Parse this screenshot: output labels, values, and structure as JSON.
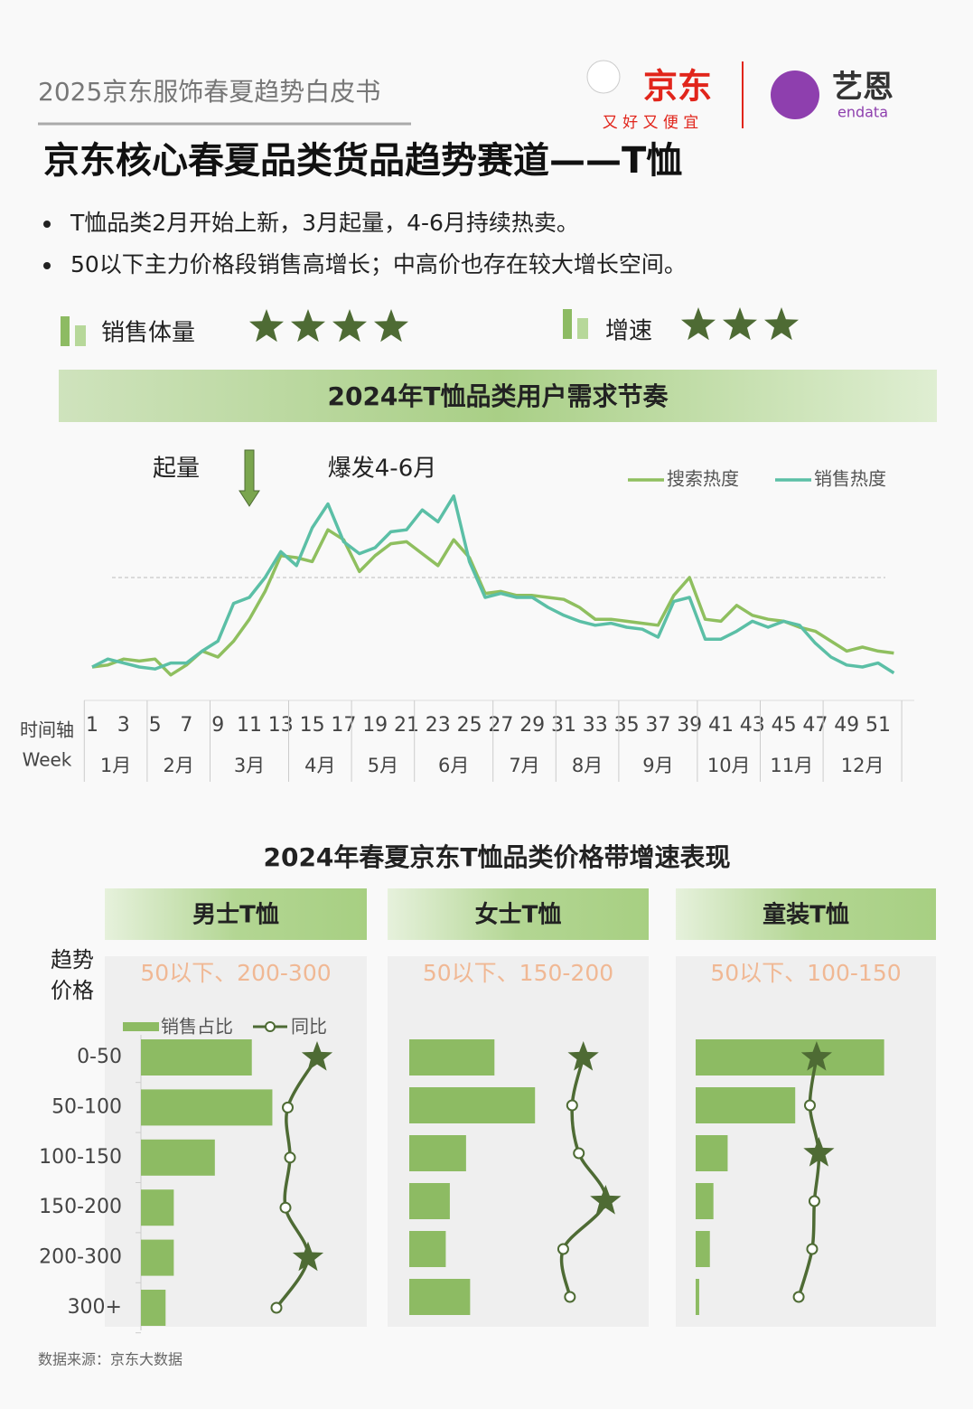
{
  "header": {
    "report": "2025京东服饰春夏趋势白皮书",
    "brand": "京东",
    "slogan": "又 好 又 便 宜",
    "partner": "艺恩",
    "partner_en": "endata"
  },
  "title": "京东核心春夏品类货品趋势赛道——T恤",
  "bullets": [
    "T恤品类2月开始上新，3月起量，4-6月持续热卖。",
    "50以下主力价格段销售高增长；中高价也存在较大增长空间。"
  ],
  "ratings": [
    {
      "label": "销售体量",
      "stars": 4
    },
    {
      "label": "增速",
      "stars": 3
    }
  ],
  "chart_data": [
    {
      "type": "line",
      "title": "2024年T恤品类用户需求节奏",
      "annotations": [
        {
          "text": "起量",
          "x": 11
        },
        {
          "text": "爆发4-6月"
        }
      ],
      "xlabel": "时间轴",
      "xlabel2": "Week",
      "x": [
        1,
        2,
        3,
        4,
        5,
        6,
        7,
        8,
        9,
        10,
        11,
        12,
        13,
        14,
        15,
        16,
        17,
        18,
        19,
        20,
        21,
        22,
        23,
        24,
        25,
        26,
        27,
        28,
        29,
        30,
        31,
        32,
        33,
        34,
        35,
        36,
        37,
        38,
        39,
        40,
        41,
        42,
        43,
        44,
        45,
        46,
        47,
        48,
        49,
        50,
        51,
        52
      ],
      "xticks": [
        1,
        3,
        5,
        7,
        9,
        11,
        13,
        15,
        17,
        19,
        21,
        23,
        25,
        27,
        29,
        31,
        33,
        35,
        37,
        39,
        41,
        43,
        45,
        47,
        49,
        51
      ],
      "months": [
        "1月",
        "2月",
        "3月",
        "4月",
        "5月",
        "6月",
        "7月",
        "8月",
        "9月",
        "10月",
        "11月",
        "12月"
      ],
      "month_weeks": [
        4,
        4,
        5,
        4,
        4,
        5,
        4,
        4,
        5,
        4,
        4,
        5
      ],
      "ylim": [
        0,
        100
      ],
      "reference_line": 55,
      "legend": "top-right",
      "series": [
        {
          "name": "搜索热度",
          "color": "#8fbf5f",
          "values": [
            10,
            11,
            14,
            13,
            14,
            6,
            11,
            18,
            15,
            23,
            34,
            48,
            66,
            65,
            63,
            79,
            74,
            58,
            66,
            72,
            73,
            67,
            61,
            74,
            65,
            47,
            48,
            46,
            46,
            45,
            44,
            40,
            34,
            34,
            33,
            32,
            31,
            46,
            55,
            34,
            33,
            41,
            36,
            34,
            33,
            30,
            28,
            23,
            18,
            20,
            18,
            17
          ]
        },
        {
          "name": "销售热度",
          "color": "#5bbfa6",
          "values": [
            10,
            14,
            12,
            10,
            9,
            12,
            12,
            18,
            23,
            42,
            45,
            55,
            68,
            61,
            80,
            92,
            73,
            67,
            70,
            78,
            79,
            89,
            83,
            96,
            63,
            45,
            47,
            45,
            45,
            40,
            36,
            33,
            31,
            32,
            30,
            29,
            25,
            43,
            45,
            24,
            24,
            28,
            33,
            30,
            33,
            31,
            22,
            15,
            11,
            10,
            12,
            7
          ]
        }
      ]
    },
    {
      "type": "bar",
      "orientation": "horizontal",
      "title": "男士T恤",
      "subtitle": "50以下、200-300",
      "legend": "top-left",
      "categories": [
        "0-50",
        "50-100",
        "100-150",
        "150-200",
        "200-300",
        "300+"
      ],
      "xlim": [
        0,
        55
      ],
      "x2lim": [
        0,
        100
      ],
      "series": [
        {
          "name": "销售占比",
          "color": "#8dbb63",
          "values": [
            27,
            32,
            18,
            8,
            8,
            6
          ]
        },
        {
          "name": "同比",
          "color": "#4e6b34",
          "axis": "x2",
          "values": [
            78,
            65,
            66,
            64,
            74,
            60
          ],
          "highlight": [
            true,
            false,
            false,
            false,
            true,
            false
          ]
        }
      ]
    },
    {
      "type": "bar",
      "orientation": "horizontal",
      "title": "女士T恤",
      "subtitle": "50以下、150-200",
      "xlim": [
        0,
        55
      ],
      "x2lim": [
        0,
        100
      ],
      "series": [
        {
          "color": "#8dbb63",
          "values": [
            21,
            31,
            14,
            10,
            9,
            15
          ]
        },
        {
          "color": "#4e6b34",
          "axis": "x2",
          "values": [
            78,
            73,
            76,
            88,
            69,
            72
          ],
          "highlight": [
            true,
            false,
            false,
            true,
            false,
            false
          ]
        }
      ]
    },
    {
      "type": "bar",
      "orientation": "horizontal",
      "title": "童装T恤",
      "subtitle": "50以下、100-150",
      "xlim": [
        0,
        63
      ],
      "x2lim": [
        0,
        100
      ],
      "series": [
        {
          "color": "#8dbb63",
          "values": [
            53,
            28,
            9,
            5,
            4,
            1
          ]
        },
        {
          "color": "#4e6b34",
          "axis": "x2",
          "values": [
            54,
            51,
            55,
            53,
            52,
            46
          ],
          "highlight": [
            true,
            false,
            true,
            false,
            false,
            false
          ]
        }
      ]
    }
  ],
  "price_section": {
    "title": "2024年春夏京东T恤品类价格带增速表现",
    "trend_label": "趋势",
    "price_label": "价格"
  },
  "source": "数据来源：京东大数据"
}
